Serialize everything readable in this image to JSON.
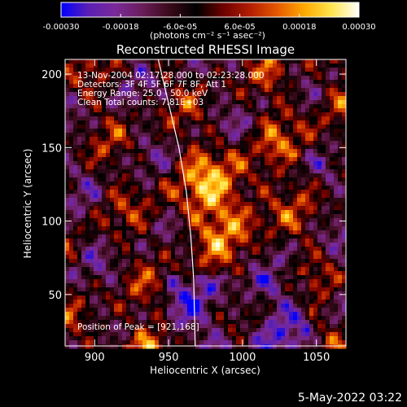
{
  "chart_data": {
    "type": "heatmap",
    "title": "Reconstructed RHESSI Image",
    "xlabel": "Heliocentric X (arcsec)",
    "ylabel": "Heliocentric Y (arcsec)",
    "xlim": [
      880,
      1070
    ],
    "ylim": [
      15,
      210
    ],
    "x_ticks": [
      900,
      950,
      1000,
      1050
    ],
    "y_ticks": [
      50,
      100,
      150,
      200
    ],
    "colorbar": {
      "range": [
        -0.0003,
        0.0003
      ],
      "tick_labels": [
        "-0.00030",
        "-0.00018",
        "-6.0e-05",
        "6.0e-05",
        "0.00018",
        "0.00030"
      ],
      "unit": "(photons cm⁻² s⁻¹ asec⁻²)",
      "colormap": [
        "#0000ff",
        "#5a1fb4",
        "#7a2a9a",
        "#6a1e5a",
        "#3a0a1a",
        "#000000",
        "#6e0000",
        "#b41e00",
        "#e65a00",
        "#ffaa00",
        "#ffe650",
        "#ffffff"
      ]
    },
    "limb_curve": {
      "color": "#ffffff",
      "points": [
        [
          943,
          210
        ],
        [
          950,
          180
        ],
        [
          957,
          150
        ],
        [
          962,
          120
        ],
        [
          965,
          90
        ],
        [
          967,
          60
        ],
        [
          968,
          15
        ]
      ]
    },
    "peak_position": [
      921,
      168
    ],
    "grid": false
  },
  "info": {
    "time_range": "13-Nov-2004 02:17:28.000 to 02:23:28.000",
    "detectors": "Detectors: 3F 4F 5F 6F 7F 8F, Att 1",
    "energy": "Energy Range: 25.0 - 50.0 keV",
    "method": "Clean     Total counts: 7.81E+03",
    "peak": "Position of Peak = [921,168]"
  },
  "timestamp": "5-May-2022 03:22"
}
